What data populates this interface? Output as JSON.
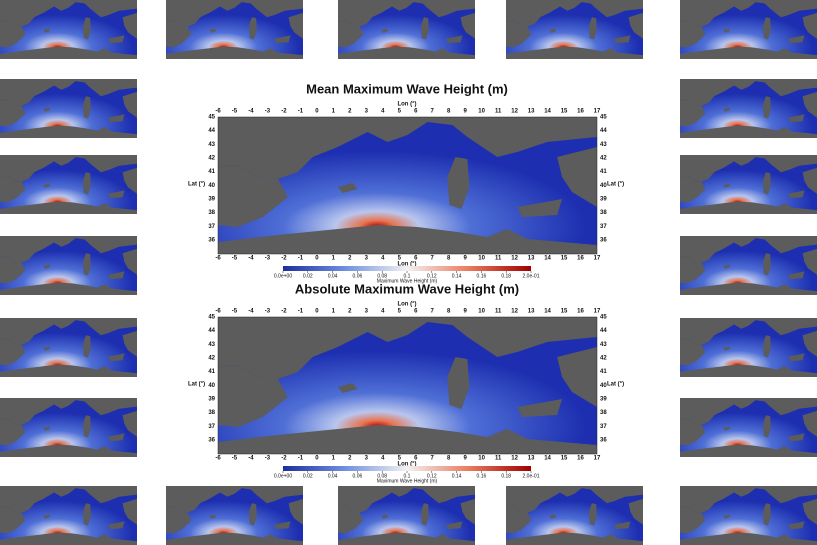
{
  "panels": [
    {
      "title": "Mean Maximum Wave Height (m)",
      "lon_label": "Lon (°)",
      "lat_label": "Lat (°)",
      "lon_ticks": [
        -6,
        -5,
        -4,
        -3,
        -2,
        -1,
        0,
        1,
        2,
        3,
        4,
        5,
        6,
        7,
        8,
        9,
        10,
        11,
        12,
        13,
        14,
        15,
        16,
        17
      ],
      "lat_ticks": [
        45,
        44,
        43,
        42,
        41,
        40,
        39,
        38,
        37,
        36
      ],
      "colorbar": {
        "label": "Maximum Wave Height (m)",
        "ticks": [
          {
            "value": 0,
            "label": "0.0e+00"
          },
          0.02,
          0.04,
          0.06,
          0.08,
          0.1,
          0.12,
          0.14,
          0.16,
          0.18,
          {
            "value": 0.2,
            "label": "2.0e-01"
          }
        ]
      }
    },
    {
      "title": "Absolute Maximum Wave Height (m)",
      "lon_label": "Lon (°)",
      "lat_label": "Lat (°)",
      "lon_ticks": [
        -6,
        -5,
        -4,
        -3,
        -2,
        -1,
        0,
        1,
        2,
        3,
        4,
        5,
        6,
        7,
        8,
        9,
        10,
        11,
        12,
        13,
        14,
        15,
        16,
        17
      ],
      "lat_ticks": [
        45,
        44,
        43,
        42,
        41,
        40,
        39,
        38,
        37,
        36
      ],
      "colorbar": {
        "label": "Maximum Wave Height (m)",
        "ticks": [
          {
            "value": 0,
            "label": "0.0e+00"
          },
          0.02,
          0.04,
          0.06,
          0.08,
          0.1,
          0.12,
          0.14,
          0.16,
          0.18,
          {
            "value": 0.2,
            "label": "2.0e-01"
          }
        ]
      }
    }
  ]
}
